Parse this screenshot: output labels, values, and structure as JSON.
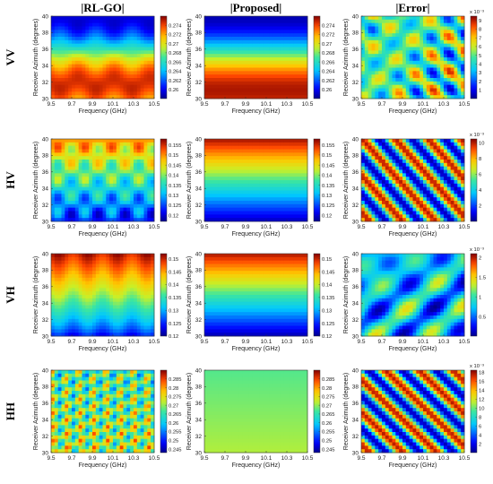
{
  "column_titles": [
    "|RL-GO|",
    "|Proposed|",
    "|Error|"
  ],
  "row_labels": [
    "VV",
    "HV",
    "VH",
    "HH"
  ],
  "xlabel": "Frequency (GHz)",
  "ylabel": "Receiver Azimuth (degrees)",
  "x_ticks": [
    "9.5",
    "9.7",
    "9.9",
    "10.1",
    "10.3",
    "10.5"
  ],
  "y_ticks": [
    "30",
    "32",
    "34",
    "36",
    "38",
    "40"
  ],
  "colorbar_exponent": "x 10⁻³",
  "chart_data": [
    {
      "type": "heatmap",
      "row": "VV",
      "panel": "RL-GO",
      "xlabel": "Frequency (GHz)",
      "ylabel": "Receiver Azimuth (degrees)",
      "xlim": [
        9.5,
        10.5
      ],
      "ylim": [
        30,
        40
      ],
      "pattern": "horizontal bands with weak ripple; high near 31-32 deg, low near 36-38 deg",
      "color_range": [
        0.258,
        0.276
      ],
      "colorbar_ticks": [
        "0.26",
        "0.262",
        "0.264",
        "0.266",
        "0.268",
        "0.27",
        "0.272",
        "0.274"
      ]
    },
    {
      "type": "heatmap",
      "row": "VV",
      "panel": "Proposed",
      "xlabel": "Frequency (GHz)",
      "ylabel": "Receiver Azimuth (degrees)",
      "xlim": [
        9.5,
        10.5
      ],
      "ylim": [
        30,
        40
      ],
      "pattern": "smooth horizontal bands varying with azimuth only",
      "color_range": [
        0.258,
        0.276
      ],
      "colorbar_ticks": [
        "0.26",
        "0.262",
        "0.264",
        "0.266",
        "0.268",
        "0.27",
        "0.272",
        "0.274"
      ]
    },
    {
      "type": "heatmap",
      "row": "VV",
      "panel": "Error",
      "xlabel": "Frequency (GHz)",
      "ylabel": "Receiver Azimuth (degrees)",
      "xlim": [
        9.5,
        10.5
      ],
      "ylim": [
        30,
        40
      ],
      "pattern": "blob interference pattern",
      "color_range": [
        0,
        0.0095
      ],
      "colorbar_exponent": "x 10⁻³",
      "colorbar_ticks": [
        "1",
        "2",
        "3",
        "4",
        "5",
        "6",
        "7",
        "8",
        "9"
      ]
    },
    {
      "type": "heatmap",
      "row": "HV",
      "panel": "RL-GO",
      "xlabel": "Frequency (GHz)",
      "ylabel": "Receiver Azimuth (degrees)",
      "xlim": [
        9.5,
        10.5
      ],
      "ylim": [
        30,
        40
      ],
      "pattern": "checkerboard ripple, high near top (40 deg), low near bottom",
      "color_range": [
        0.117,
        0.158
      ],
      "colorbar_ticks": [
        "0.12",
        "0.125",
        "0.13",
        "0.135",
        "0.14",
        "0.145",
        "0.15",
        "0.155"
      ]
    },
    {
      "type": "heatmap",
      "row": "HV",
      "panel": "Proposed",
      "xlabel": "Frequency (GHz)",
      "ylabel": "Receiver Azimuth (degrees)",
      "xlim": [
        9.5,
        10.5
      ],
      "ylim": [
        30,
        40
      ],
      "pattern": "smooth gradient with azimuth, high at 40 deg, low at 30 deg",
      "color_range": [
        0.117,
        0.158
      ],
      "colorbar_ticks": [
        "0.12",
        "0.125",
        "0.13",
        "0.135",
        "0.14",
        "0.145",
        "0.15",
        "0.155"
      ]
    },
    {
      "type": "heatmap",
      "row": "HV",
      "panel": "Error",
      "xlabel": "Frequency (GHz)",
      "ylabel": "Receiver Azimuth (degrees)",
      "xlim": [
        9.5,
        10.5
      ],
      "ylim": [
        30,
        40
      ],
      "pattern": "diagonal stripes",
      "color_range": [
        0,
        0.0105
      ],
      "colorbar_exponent": "x 10⁻³",
      "colorbar_ticks": [
        "2",
        "4",
        "6",
        "8",
        "10"
      ]
    },
    {
      "type": "heatmap",
      "row": "VH",
      "panel": "RL-GO",
      "xlabel": "Frequency (GHz)",
      "ylabel": "Receiver Azimuth (degrees)",
      "xlim": [
        9.5,
        10.5
      ],
      "ylim": [
        30,
        40
      ],
      "pattern": "horizontal bands, high near 38-39 deg, low near 30 deg, slight ripple",
      "color_range": [
        0.12,
        0.152
      ],
      "colorbar_ticks": [
        "0.12",
        "0.125",
        "0.13",
        "0.135",
        "0.14",
        "0.145",
        "0.15"
      ]
    },
    {
      "type": "heatmap",
      "row": "VH",
      "panel": "Proposed",
      "xlabel": "Frequency (GHz)",
      "ylabel": "Receiver Azimuth (degrees)",
      "xlim": [
        9.5,
        10.5
      ],
      "ylim": [
        30,
        40
      ],
      "pattern": "smooth horizontal bands",
      "color_range": [
        0.12,
        0.152
      ],
      "colorbar_ticks": [
        "0.12",
        "0.125",
        "0.13",
        "0.135",
        "0.14",
        "0.145",
        "0.15"
      ]
    },
    {
      "type": "heatmap",
      "row": "VH",
      "panel": "Error",
      "xlabel": "Frequency (GHz)",
      "ylabel": "Receiver Azimuth (degrees)",
      "xlim": [
        9.5,
        10.5
      ],
      "ylim": [
        30,
        40
      ],
      "pattern": "irregular blobs with dark contour lines",
      "color_range": [
        0,
        0.0021
      ],
      "colorbar_exponent": "x 10⁻³",
      "colorbar_ticks": [
        "0.5",
        "1",
        "1.5",
        "2"
      ]
    },
    {
      "type": "heatmap",
      "row": "HH",
      "panel": "RL-GO",
      "xlabel": "Frequency (GHz)",
      "ylabel": "Receiver Azimuth (degrees)",
      "xlim": [
        9.5,
        10.5
      ],
      "ylim": [
        30,
        40
      ],
      "pattern": "strong oblique checkerboard ripple",
      "color_range": [
        0.243,
        0.29
      ],
      "colorbar_ticks": [
        "0.245",
        "0.25",
        "0.255",
        "0.26",
        "0.265",
        "0.27",
        "0.275",
        "0.28",
        "0.285"
      ]
    },
    {
      "type": "heatmap",
      "row": "HH",
      "panel": "Proposed",
      "xlabel": "Frequency (GHz)",
      "ylabel": "Receiver Azimuth (degrees)",
      "xlim": [
        9.5,
        10.5
      ],
      "ylim": [
        30,
        40
      ],
      "pattern": "nearly uniform, slight gradient (green to yellow)",
      "color_range": [
        0.243,
        0.29
      ],
      "colorbar_ticks": [
        "0.245",
        "0.25",
        "0.255",
        "0.26",
        "0.265",
        "0.27",
        "0.275",
        "0.28",
        "0.285"
      ]
    },
    {
      "type": "heatmap",
      "row": "HH",
      "panel": "Error",
      "xlabel": "Frequency (GHz)",
      "ylabel": "Receiver Azimuth (degrees)",
      "xlim": [
        9.5,
        10.5
      ],
      "ylim": [
        30,
        40
      ],
      "pattern": "diagonal stripes",
      "color_range": [
        0,
        0.0185
      ],
      "colorbar_exponent": "x 10⁻³",
      "colorbar_ticks": [
        "2",
        "4",
        "6",
        "8",
        "10",
        "12",
        "14",
        "16",
        "18"
      ]
    }
  ]
}
